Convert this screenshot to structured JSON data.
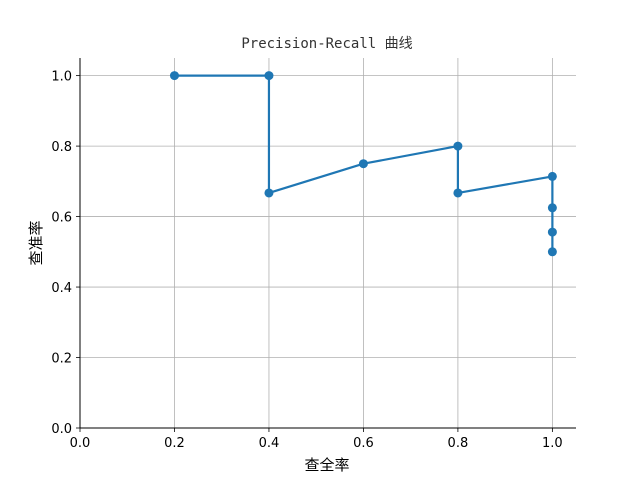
{
  "chart_data": {
    "type": "line",
    "title": "Precision-Recall 曲线",
    "xlabel": "查全率",
    "ylabel": "查准率",
    "xlim": [
      0.0,
      1.05
    ],
    "ylim": [
      0.0,
      1.05
    ],
    "xticks": [
      0.0,
      0.2,
      0.4,
      0.6,
      0.8,
      1.0
    ],
    "yticks": [
      0.0,
      0.2,
      0.4,
      0.6,
      0.8,
      1.0
    ],
    "xtick_labels": [
      "0.0",
      "0.2",
      "0.4",
      "0.6",
      "0.8",
      "1.0"
    ],
    "ytick_labels": [
      "0.0",
      "0.2",
      "0.4",
      "0.6",
      "0.8",
      "1.0"
    ],
    "grid": true,
    "markers": true,
    "line_color": "#1f77b4",
    "series": [
      {
        "x": [
          0.2,
          0.4,
          0.4,
          0.6,
          0.8,
          0.8,
          1.0,
          1.0,
          1.0,
          1.0
        ],
        "y": [
          1.0,
          1.0,
          0.667,
          0.75,
          0.8,
          0.667,
          0.714,
          0.625,
          0.556,
          0.5
        ]
      }
    ]
  }
}
